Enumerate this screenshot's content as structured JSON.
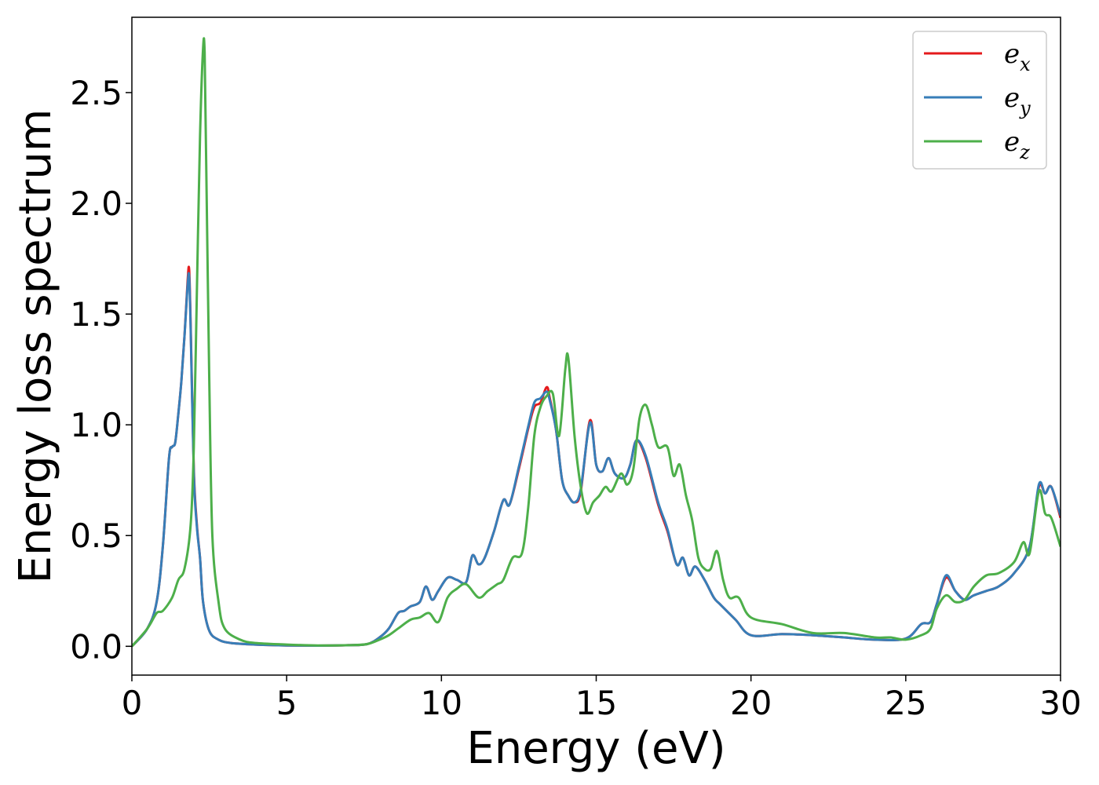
{
  "chart_data": {
    "type": "line",
    "title": "",
    "xlabel": "Energy (eV)",
    "ylabel": "Energy loss spectrum",
    "xlim": [
      0,
      30
    ],
    "ylim": [
      -0.13,
      2.84
    ],
    "xticks": [
      0,
      5,
      10,
      15,
      20,
      25,
      30
    ],
    "xtick_labels": [
      "0",
      "5",
      "10",
      "15",
      "20",
      "25",
      "30"
    ],
    "yticks": [
      0.0,
      0.5,
      1.0,
      1.5,
      2.0,
      2.5
    ],
    "ytick_labels": [
      "0.0",
      "0.5",
      "1.0",
      "1.5",
      "2.0",
      "2.5"
    ],
    "grid": false,
    "legend": {
      "position": "top-right"
    },
    "series": [
      {
        "name": "e_x",
        "label_main": "e",
        "label_sub": "x",
        "color": "#e41a1c",
        "x": [
          0.0,
          0.5,
          0.8,
          1.0,
          1.2,
          1.3,
          1.4,
          1.5,
          1.6,
          1.7,
          1.8,
          1.85,
          1.9,
          2.0,
          2.1,
          2.2,
          2.3,
          2.5,
          2.8,
          3.2,
          4.0,
          5.0,
          6.0,
          7.0,
          7.6,
          8.0,
          8.3,
          8.6,
          8.8,
          9.0,
          9.3,
          9.5,
          9.7,
          9.9,
          10.2,
          10.5,
          10.8,
          11.0,
          11.2,
          11.4,
          11.7,
          12.0,
          12.2,
          12.5,
          12.8,
          13.0,
          13.2,
          13.4,
          13.5,
          13.7,
          13.9,
          14.1,
          14.3,
          14.5,
          14.8,
          15.0,
          15.2,
          15.4,
          15.6,
          15.9,
          16.1,
          16.3,
          16.6,
          17.0,
          17.3,
          17.6,
          17.8,
          18.0,
          18.2,
          18.5,
          18.8,
          19.0,
          19.5,
          20.0,
          21.0,
          22.0,
          23.0,
          24.0,
          25.0,
          25.5,
          25.8,
          26.0,
          26.3,
          26.6,
          26.9,
          27.2,
          27.6,
          28.0,
          28.5,
          29.0,
          29.3,
          29.5,
          29.7,
          30.0
        ],
        "y": [
          0.0,
          0.08,
          0.2,
          0.45,
          0.85,
          0.9,
          0.92,
          1.05,
          1.2,
          1.4,
          1.65,
          1.7,
          1.45,
          0.8,
          0.55,
          0.4,
          0.2,
          0.07,
          0.03,
          0.015,
          0.008,
          0.004,
          0.003,
          0.005,
          0.01,
          0.04,
          0.08,
          0.15,
          0.16,
          0.18,
          0.2,
          0.27,
          0.21,
          0.25,
          0.31,
          0.3,
          0.29,
          0.41,
          0.37,
          0.4,
          0.52,
          0.66,
          0.64,
          0.8,
          0.98,
          1.08,
          1.1,
          1.17,
          1.12,
          0.98,
          0.75,
          0.68,
          0.65,
          0.7,
          1.02,
          0.82,
          0.79,
          0.85,
          0.78,
          0.76,
          0.82,
          0.93,
          0.85,
          0.64,
          0.52,
          0.37,
          0.4,
          0.32,
          0.36,
          0.3,
          0.22,
          0.19,
          0.12,
          0.05,
          0.055,
          0.05,
          0.04,
          0.03,
          0.035,
          0.1,
          0.11,
          0.19,
          0.31,
          0.25,
          0.21,
          0.23,
          0.25,
          0.27,
          0.33,
          0.45,
          0.72,
          0.69,
          0.72,
          0.58
        ]
      },
      {
        "name": "e_y",
        "label_main": "e",
        "label_sub": "y",
        "color": "#377eb8",
        "x": [
          0.0,
          0.5,
          0.8,
          1.0,
          1.2,
          1.3,
          1.4,
          1.5,
          1.6,
          1.7,
          1.8,
          1.85,
          1.9,
          2.0,
          2.1,
          2.2,
          2.3,
          2.5,
          2.8,
          3.2,
          4.0,
          5.0,
          6.0,
          7.0,
          7.6,
          8.0,
          8.3,
          8.6,
          8.8,
          9.0,
          9.3,
          9.5,
          9.7,
          9.9,
          10.2,
          10.5,
          10.8,
          11.0,
          11.2,
          11.4,
          11.7,
          12.0,
          12.2,
          12.5,
          12.8,
          13.0,
          13.2,
          13.4,
          13.5,
          13.7,
          13.9,
          14.1,
          14.3,
          14.5,
          14.8,
          15.0,
          15.2,
          15.4,
          15.6,
          15.9,
          16.1,
          16.3,
          16.6,
          17.0,
          17.3,
          17.6,
          17.8,
          18.0,
          18.2,
          18.5,
          18.8,
          19.0,
          19.5,
          20.0,
          21.0,
          22.0,
          23.0,
          24.0,
          25.0,
          25.5,
          25.8,
          26.0,
          26.3,
          26.6,
          26.9,
          27.2,
          27.6,
          28.0,
          28.5,
          29.0,
          29.3,
          29.5,
          29.7,
          30.0
        ],
        "y": [
          0.0,
          0.08,
          0.2,
          0.45,
          0.85,
          0.9,
          0.92,
          1.05,
          1.2,
          1.4,
          1.63,
          1.67,
          1.43,
          0.78,
          0.54,
          0.4,
          0.2,
          0.07,
          0.03,
          0.015,
          0.008,
          0.004,
          0.003,
          0.005,
          0.01,
          0.04,
          0.08,
          0.15,
          0.16,
          0.18,
          0.2,
          0.27,
          0.21,
          0.25,
          0.31,
          0.3,
          0.29,
          0.41,
          0.37,
          0.4,
          0.52,
          0.66,
          0.64,
          0.81,
          0.99,
          1.1,
          1.12,
          1.15,
          1.11,
          0.98,
          0.75,
          0.68,
          0.65,
          0.71,
          1.01,
          0.82,
          0.79,
          0.85,
          0.78,
          0.76,
          0.82,
          0.93,
          0.86,
          0.65,
          0.53,
          0.37,
          0.4,
          0.32,
          0.36,
          0.3,
          0.22,
          0.19,
          0.12,
          0.05,
          0.055,
          0.05,
          0.04,
          0.03,
          0.035,
          0.1,
          0.11,
          0.19,
          0.32,
          0.25,
          0.21,
          0.23,
          0.25,
          0.27,
          0.33,
          0.45,
          0.73,
          0.69,
          0.72,
          0.59
        ]
      },
      {
        "name": "e_z",
        "label_main": "e",
        "label_sub": "z",
        "color": "#4daf4a",
        "x": [
          0.0,
          0.5,
          0.8,
          1.0,
          1.3,
          1.5,
          1.7,
          1.9,
          2.0,
          2.1,
          2.2,
          2.3,
          2.35,
          2.4,
          2.5,
          2.6,
          2.8,
          3.0,
          3.5,
          4.0,
          5.0,
          6.0,
          7.0,
          7.6,
          8.0,
          8.3,
          8.6,
          9.0,
          9.3,
          9.6,
          9.9,
          10.2,
          10.5,
          10.8,
          11.2,
          11.5,
          11.8,
          12.0,
          12.3,
          12.6,
          12.8,
          13.0,
          13.2,
          13.4,
          13.6,
          13.8,
          14.0,
          14.1,
          14.3,
          14.5,
          14.7,
          14.9,
          15.1,
          15.3,
          15.5,
          15.8,
          16.0,
          16.2,
          16.4,
          16.6,
          16.8,
          17.0,
          17.3,
          17.5,
          17.7,
          17.9,
          18.1,
          18.3,
          18.5,
          18.7,
          18.9,
          19.1,
          19.3,
          19.6,
          20.0,
          21.0,
          22.0,
          23.0,
          24.0,
          24.5,
          25.0,
          25.5,
          25.8,
          26.0,
          26.3,
          26.6,
          26.9,
          27.2,
          27.6,
          28.0,
          28.5,
          28.8,
          29.0,
          29.3,
          29.5,
          29.7,
          30.0
        ],
        "y": [
          0.0,
          0.08,
          0.15,
          0.16,
          0.22,
          0.3,
          0.35,
          0.55,
          0.9,
          1.6,
          2.3,
          2.7,
          2.68,
          2.2,
          1.2,
          0.5,
          0.2,
          0.08,
          0.03,
          0.015,
          0.008,
          0.004,
          0.005,
          0.01,
          0.03,
          0.05,
          0.08,
          0.12,
          0.13,
          0.15,
          0.11,
          0.22,
          0.26,
          0.28,
          0.22,
          0.25,
          0.28,
          0.3,
          0.4,
          0.42,
          0.62,
          0.95,
          1.08,
          1.13,
          1.14,
          0.95,
          1.25,
          1.3,
          0.95,
          0.72,
          0.6,
          0.65,
          0.68,
          0.72,
          0.7,
          0.78,
          0.73,
          0.8,
          1.03,
          1.09,
          1.0,
          0.9,
          0.9,
          0.77,
          0.82,
          0.68,
          0.57,
          0.4,
          0.35,
          0.35,
          0.43,
          0.3,
          0.22,
          0.22,
          0.13,
          0.1,
          0.06,
          0.06,
          0.04,
          0.04,
          0.03,
          0.05,
          0.08,
          0.17,
          0.23,
          0.2,
          0.21,
          0.27,
          0.32,
          0.33,
          0.38,
          0.47,
          0.42,
          0.7,
          0.6,
          0.58,
          0.45
        ]
      }
    ]
  }
}
